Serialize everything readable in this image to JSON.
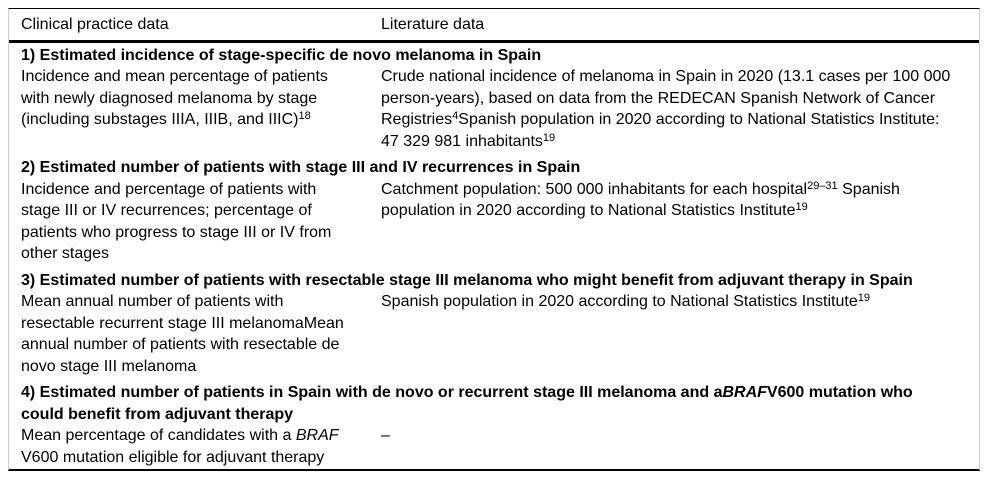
{
  "page": {
    "background_color": "#ffffff",
    "text_color": "#000000",
    "rule_color": "#000000",
    "frame_edge_color": "#cfcfcf"
  },
  "table": {
    "columns": [
      {
        "label": "Clinical practice data"
      },
      {
        "label": "Literature data"
      }
    ],
    "sections": [
      {
        "title": [
          {
            "text": "1) Estimated incidence of stage-specific de novo melanoma in Spain"
          }
        ],
        "clinical": [
          {
            "text": "Incidence and mean percentage of patients with newly diagnosed melanoma by stage (including substages IIIA, IIIB, and IIIC)"
          },
          {
            "text": "18",
            "sup": true
          }
        ],
        "literature": [
          {
            "text": "Crude national incidence of melanoma in Spain in 2020 (13.1 cases per 100 000 person-years), based on data from the REDECAN Spanish Network of Cancer Registries"
          },
          {
            "text": "4",
            "sup": true
          },
          {
            "text": "Spanish population in 2020 according to National Statistics Institute: 47 329 981 inhabitants"
          },
          {
            "text": "19",
            "sup": true
          }
        ]
      },
      {
        "title": [
          {
            "text": "2) Estimated number of patients with stage III and IV recurrences in Spain"
          }
        ],
        "clinical": [
          {
            "text": "Incidence and percentage of patients with stage III or IV recurrences; percentage of patients who progress to stage III or IV from other stages"
          }
        ],
        "literature": [
          {
            "text": "Catchment population: 500 000 inhabitants for each hospital"
          },
          {
            "text": "29–31",
            "sup": true
          },
          {
            "text": " Spanish population in 2020 according to National Statistics Institute"
          },
          {
            "text": "19",
            "sup": true
          }
        ]
      },
      {
        "title": [
          {
            "text": "3) Estimated number of patients with resectable stage III melanoma who might benefit from adjuvant therapy in Spain"
          }
        ],
        "clinical": [
          {
            "text": "Mean annual number of patients with resectable recurrent stage III melanomaMean annual number of patients with resectable de novo stage III melanoma"
          }
        ],
        "literature": [
          {
            "text": "Spanish population in 2020 according to National Statistics Institute"
          },
          {
            "text": "19",
            "sup": true
          }
        ]
      },
      {
        "title": [
          {
            "text": "4) Estimated number of patients in Spain with de novo or recurrent stage III melanoma and a"
          },
          {
            "text": "BRAF",
            "italic": true
          },
          {
            "text": "V600 mutation who could benefit from adjuvant therapy"
          }
        ],
        "clinical": [
          {
            "text": "Mean percentage of candidates with a "
          },
          {
            "text": "BRAF",
            "italic": true
          },
          {
            "text": " V600 mutation eligible for adjuvant therapy"
          }
        ],
        "literature": [
          {
            "text": "–"
          }
        ]
      }
    ]
  }
}
